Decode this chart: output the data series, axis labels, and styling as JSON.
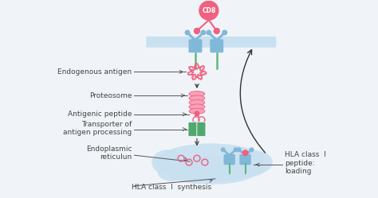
{
  "bg_color": "#f0f4f8",
  "cell_color": "#c8e0f0",
  "pink": "#f06080",
  "pink_light": "#f8a0b8",
  "green": "#50a870",
  "blue_receptor": "#80b8d8",
  "green_stem": "#60b880",
  "text_color": "#444444",
  "labels": {
    "cd8": "CD8",
    "endogenous": "Endogenous antigen",
    "proteosome": "Proteosome",
    "antigenic": "Antigenic peptide",
    "transporter": "Transporter of\nantigen processing",
    "er": "Endoplasmic\nreticulun",
    "synthesis": "HLA class  I  synthesis",
    "hla_loading": "HLA class  I\npeptide:\nloading"
  },
  "font_size": 6.5
}
